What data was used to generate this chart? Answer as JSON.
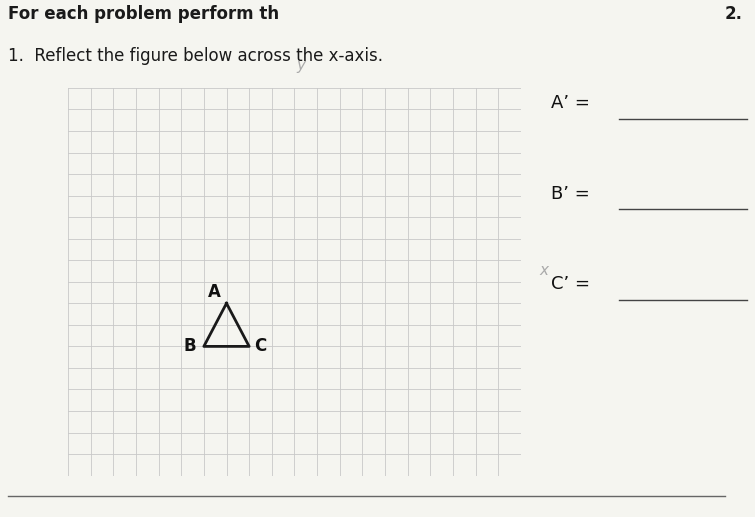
{
  "title_main": "For each problem perform th",
  "title_num": "2.",
  "subtitle": "1.  Reflect the figure below across the x-axis.",
  "grid_xlim": [
    -10,
    10
  ],
  "grid_ylim": [
    -9,
    9
  ],
  "grid_color": "#c8c8c8",
  "grid_bg": "#e8e8e8",
  "paper_color": "#f5f5f0",
  "triangle_A": [
    -3,
    -1
  ],
  "triangle_B": [
    -4,
    -3
  ],
  "triangle_C": [
    -2,
    -3
  ],
  "triangle_color": "#1a1a1a",
  "label_A": "A",
  "label_B": "B",
  "label_C": "C",
  "answer_labels": [
    "A’ = ",
    "B’ = ",
    "C’ = "
  ],
  "axis_label_x": "x",
  "axis_label_y": "y",
  "arrow_color": "#aaaaaa",
  "font_size_title": 12,
  "font_size_answers": 13,
  "font_size_axis": 11
}
